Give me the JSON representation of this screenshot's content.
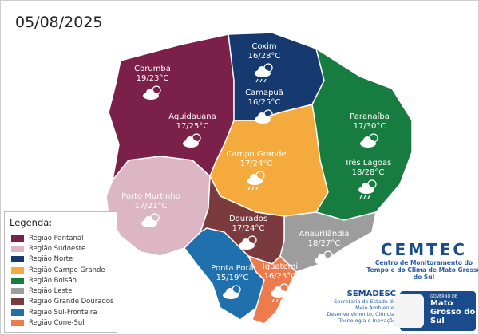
{
  "date": "05/08/2025",
  "regions": [
    {
      "name": "Região Pantanal",
      "color": "#7b2048"
    },
    {
      "name": "Região Sudoeste",
      "color": "#dcb6c3"
    },
    {
      "name": "Região Norte",
      "color": "#163a6f"
    },
    {
      "name": "Região Campo Grande",
      "color": "#f4aa3c"
    },
    {
      "name": "Região Bolsão",
      "color": "#177c3f"
    },
    {
      "name": "Região Leste",
      "color": "#9d9d9d"
    },
    {
      "name": "Região Grande Dourados",
      "color": "#7a3a3e"
    },
    {
      "name": "Região Sul-Fronteira",
      "color": "#2170ae"
    },
    {
      "name": "Região Cone-Sul",
      "color": "#ee7b4d"
    }
  ],
  "legend_title": "Legenda:",
  "cities": [
    {
      "name": "Corumbá",
      "temp": "19/23°C",
      "icon": "partly-cloudy-icon"
    },
    {
      "name": "Aquidauana",
      "temp": "17/25°C",
      "icon": "partly-cloudy-icon"
    },
    {
      "name": "Coxim",
      "temp": "16/28°C",
      "icon": "thunderstorm-icon"
    },
    {
      "name": "Camapuã",
      "temp": "16/25°C",
      "icon": "partly-cloudy-icon"
    },
    {
      "name": "Paranaíba",
      "temp": "17/30°C",
      "icon": "partly-cloudy-icon"
    },
    {
      "name": "Campo Grande",
      "temp": "17/24°C",
      "icon": "thunderstorm-icon"
    },
    {
      "name": "Três Lagoas",
      "temp": "18/28°C",
      "icon": "thunderstorm-icon"
    },
    {
      "name": "Porto Murtinho",
      "temp": "17/21°C",
      "icon": "partly-cloudy-icon"
    },
    {
      "name": "Dourados",
      "temp": "17/24°C",
      "icon": "partly-cloudy-icon"
    },
    {
      "name": "Anaurilândia",
      "temp": "18/27°C",
      "icon": "partly-cloudy-icon"
    },
    {
      "name": "Ponta Porã",
      "temp": "15/19°C",
      "icon": "partly-cloudy-icon"
    },
    {
      "name": "Iguatemi",
      "temp": "16/23°C",
      "icon": "thunderstorm-icon"
    }
  ],
  "cemtec": {
    "title": "CEMTEC",
    "subtitle": "Centro de Monitoramento do Tempo e do Clima de Mato Grosso do Sul"
  },
  "semadesc": {
    "title": "SEMADESC",
    "subtitle": "Secretaria de Estado de Meio Ambiente, Desenvolvimento, Ciência, Tecnologia e Inovação"
  },
  "gov": {
    "small": "GOVERNO DE",
    "name": "Mato Grosso do Sul"
  }
}
